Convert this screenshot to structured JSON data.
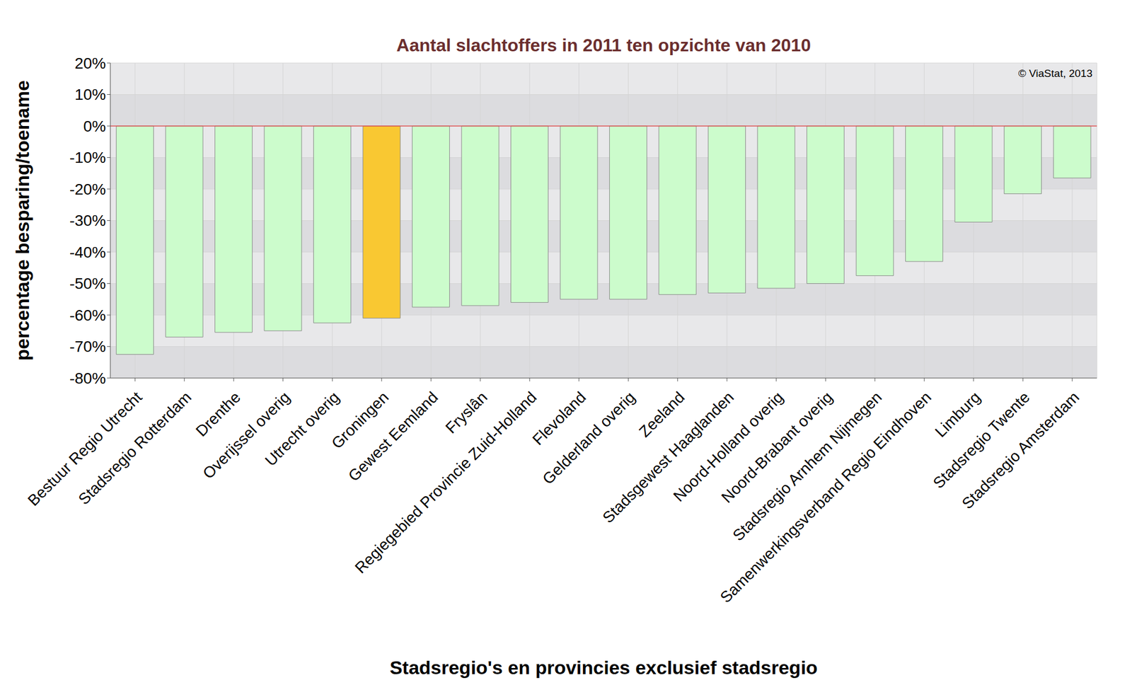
{
  "chart_data": {
    "type": "bar",
    "title": "Aantal slachtoffers in 2011 ten opzichte van 2010",
    "x_label": "Stadsregio's en provincies exclusief stadsregio",
    "y_label": "percentage besparing/toename",
    "annotation": "© ViaStat, 2013",
    "categories": [
      "Bestuur Regio Utrecht",
      "Stadsregio Rotterdam",
      "Drenthe",
      "Overijssel overig",
      "Utrecht overig",
      "Groningen",
      "Gewest Eemland",
      "Fryslân",
      "Regiegebied Provincie Zuid-Holland",
      "Flevoland",
      "Gelderland overig",
      "Zeeland",
      "Stadsgewest Haaglanden",
      "Noord-Holland overig",
      "Noord-Brabant overig",
      "Stadsregio Arnhem Nijmegen",
      "Samenwerkingsverband Regio Eindhoven",
      "Limburg",
      "Stadsregio Twente",
      "Stadsregio Amsterdam"
    ],
    "values": [
      -72.5,
      -67,
      -65.5,
      -65,
      -62.5,
      -61,
      -57.5,
      -57,
      -56,
      -55,
      -55,
      -53.5,
      -53,
      -51.5,
      -50,
      -47.5,
      -43,
      -30.5,
      -21.5,
      -16.5
    ],
    "colors": [
      "#ccfccc",
      "#ccfccc",
      "#ccfccc",
      "#ccfccc",
      "#ccfccc",
      "#f9c832",
      "#ccfccc",
      "#ccfccc",
      "#ccfccc",
      "#ccfccc",
      "#ccfccc",
      "#ccfccc",
      "#ccfccc",
      "#ccfccc",
      "#ccfccc",
      "#ccfccc",
      "#ccfccc",
      "#ccfccc",
      "#ccfccc",
      "#ccfccc"
    ],
    "ylim": [
      -80,
      20
    ],
    "yticks": [
      {
        "value": -80,
        "label": "-80%"
      },
      {
        "value": -70,
        "label": "-70%"
      },
      {
        "value": -60,
        "label": "-60%"
      },
      {
        "value": -50,
        "label": "-50%"
      },
      {
        "value": -40,
        "label": "-40%"
      },
      {
        "value": -30,
        "label": "-30%"
      },
      {
        "value": -20,
        "label": "-20%"
      },
      {
        "value": -10,
        "label": "-10%"
      },
      {
        "value": 0,
        "label": "0%"
      },
      {
        "value": 10,
        "label": "10%"
      },
      {
        "value": 20,
        "label": "20%"
      }
    ],
    "grid": true
  }
}
